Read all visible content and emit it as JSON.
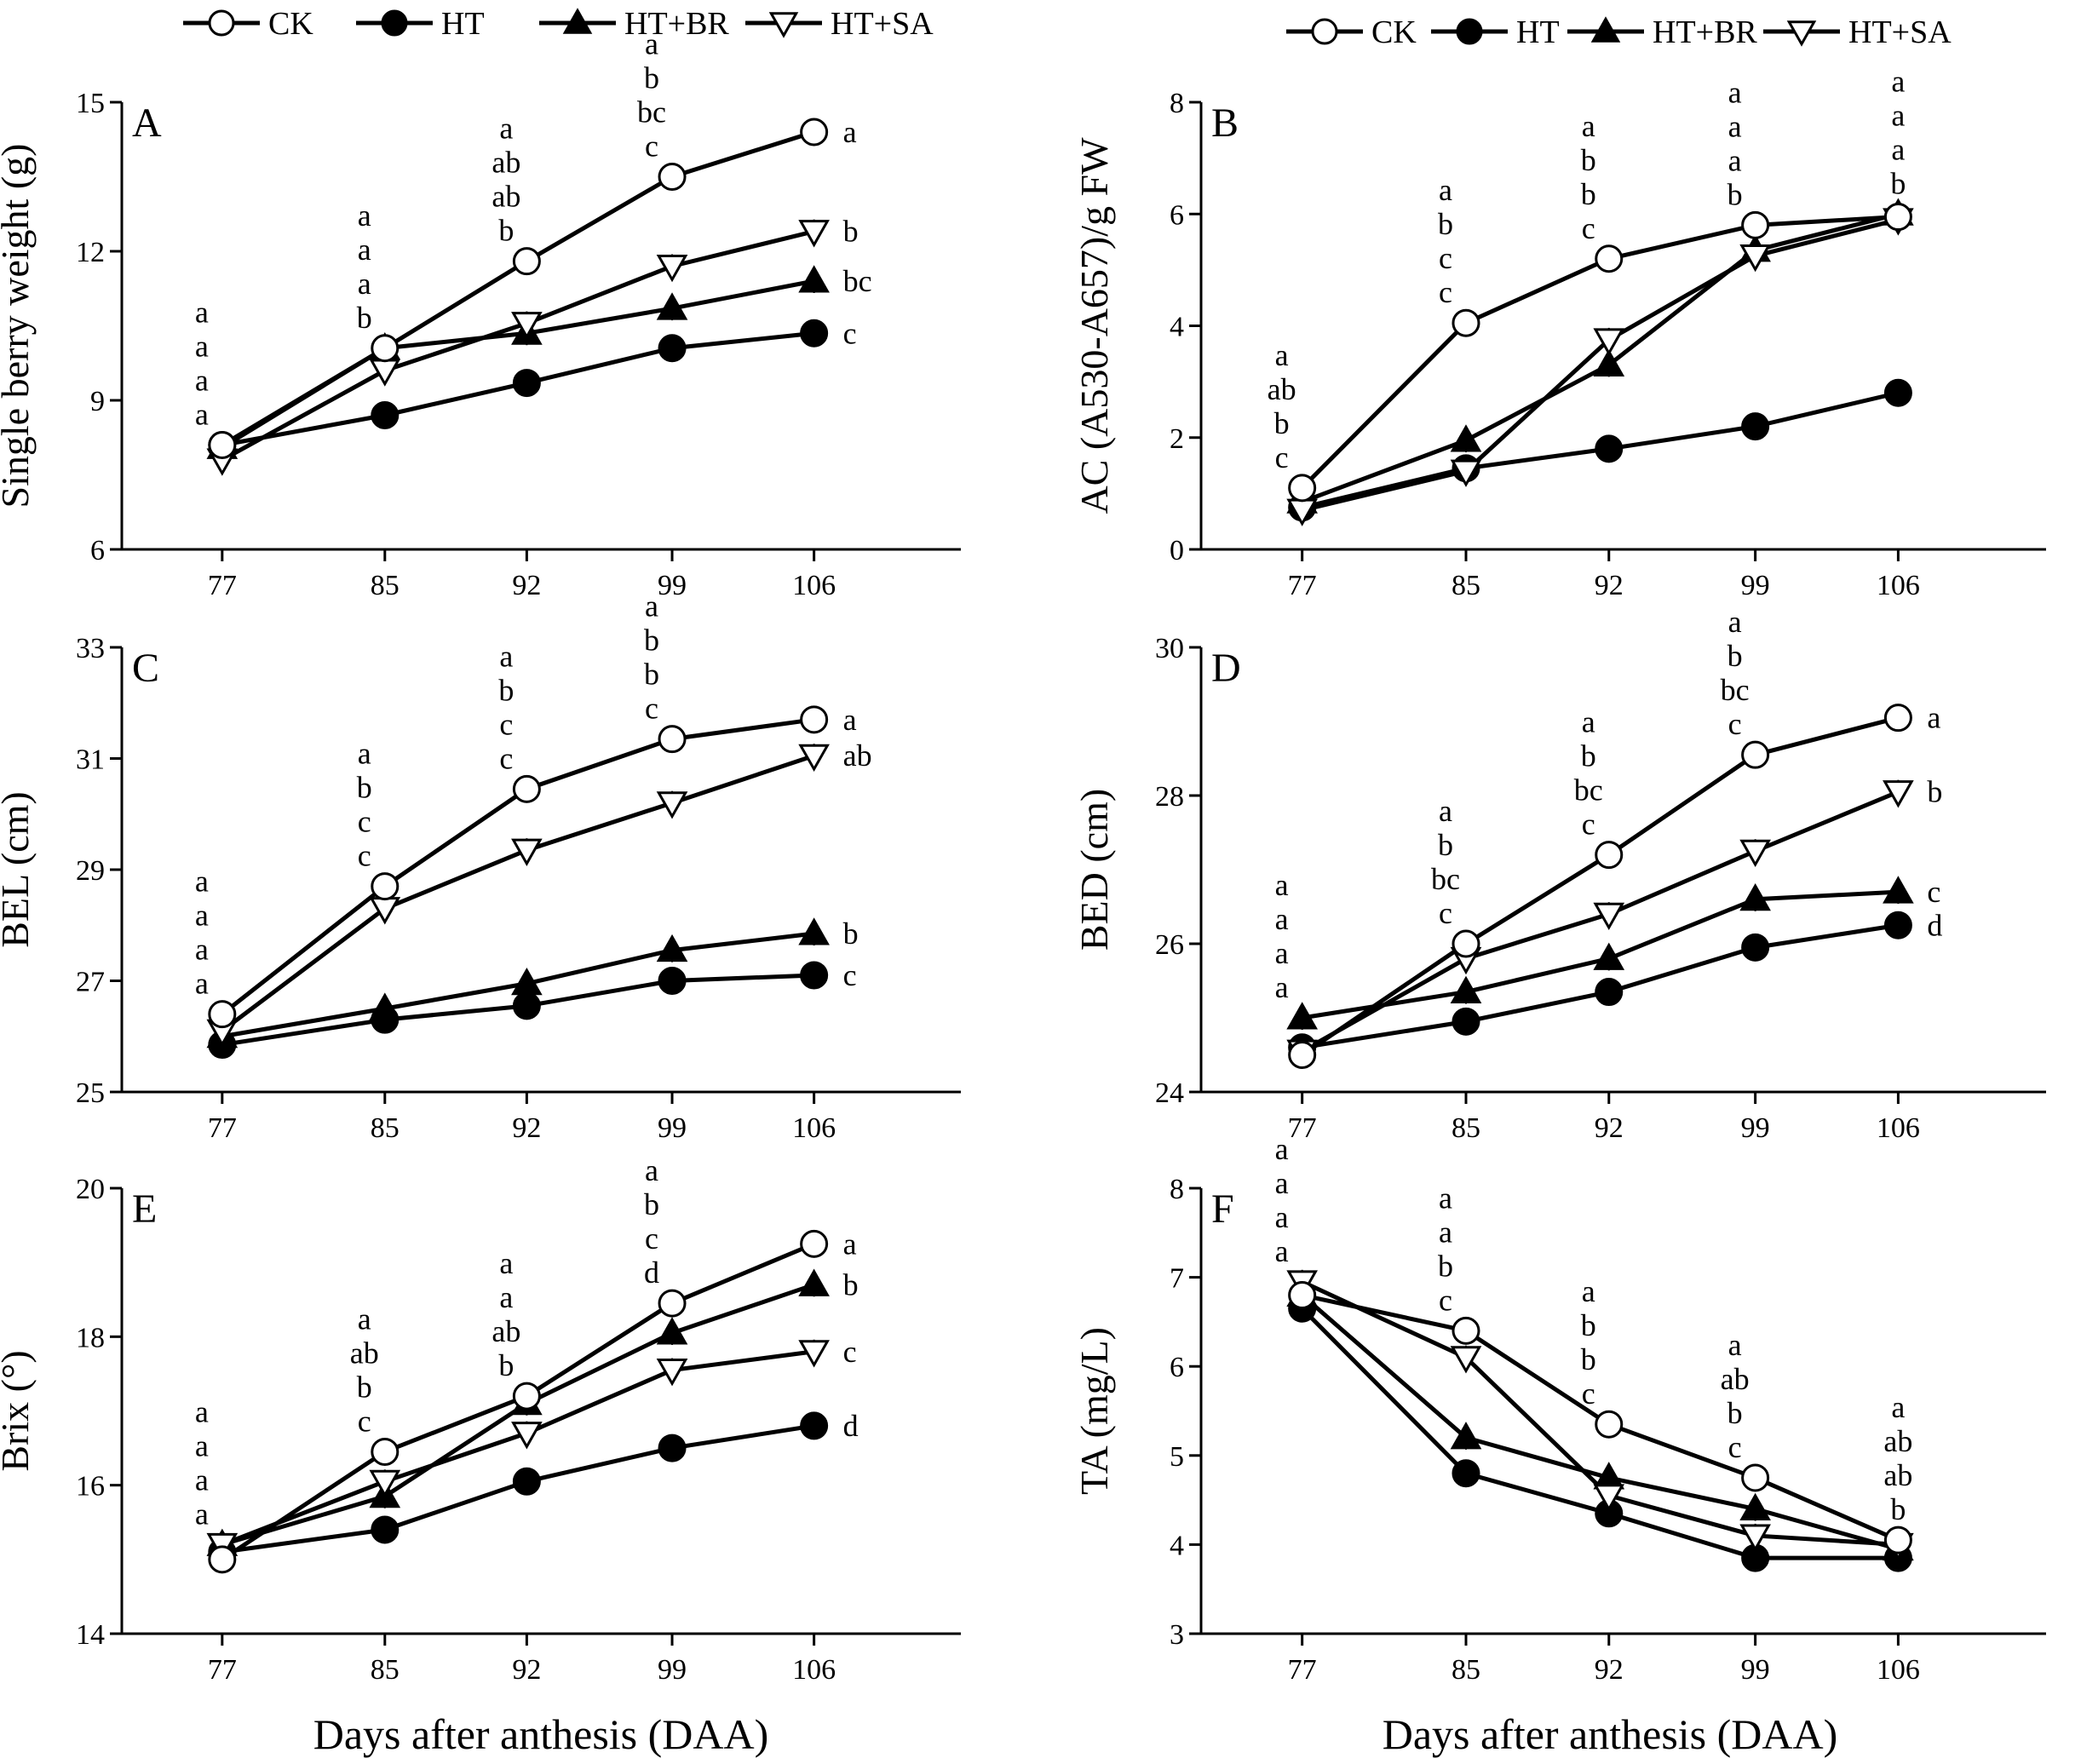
{
  "legend": [
    {
      "name": "CK",
      "marker": "open-circle-icon"
    },
    {
      "name": "HT",
      "marker": "filled-circle-icon"
    },
    {
      "name": "HT+BR",
      "marker": "filled-triangle-up-icon"
    },
    {
      "name": "HT+SA",
      "marker": "open-triangle-down-icon"
    }
  ],
  "xlabel": "Days after anthesis (DAA)",
  "chart_data": [
    {
      "panel": "A",
      "type": "line",
      "ylabel": "Single berry weight (g)",
      "categories": [
        "77",
        "85",
        "92",
        "99",
        "106"
      ],
      "ylim": [
        6,
        15
      ],
      "yticks": [
        6,
        9,
        12,
        15
      ],
      "series": [
        {
          "name": "CK",
          "values": [
            8.1,
            10.05,
            11.8,
            13.5,
            14.4
          ]
        },
        {
          "name": "HT",
          "values": [
            8.1,
            8.7,
            9.35,
            10.05,
            10.35
          ]
        },
        {
          "name": "HT+BR",
          "values": [
            8.05,
            10.05,
            10.35,
            10.85,
            11.4
          ]
        },
        {
          "name": "HT+SA",
          "values": [
            7.8,
            9.6,
            10.55,
            11.7,
            12.4
          ]
        }
      ],
      "letters": [
        [
          "a",
          "a",
          "a",
          "a"
        ],
        [
          "a",
          "a",
          "a",
          "b"
        ],
        [
          "a",
          "ab",
          "ab",
          "b"
        ],
        [
          "a",
          "b",
          "bc",
          "c"
        ],
        []
      ],
      "end_letters": [
        "a",
        "b",
        "bc",
        "c"
      ]
    },
    {
      "panel": "B",
      "type": "line",
      "ylabel": "AC (A530-A657)/g FW",
      "categories": [
        "77",
        "85",
        "92",
        "99",
        "106"
      ],
      "ylim": [
        0,
        8
      ],
      "yticks": [
        0,
        2,
        4,
        6,
        8
      ],
      "series": [
        {
          "name": "CK",
          "values": [
            1.1,
            4.05,
            5.2,
            5.8,
            5.95
          ]
        },
        {
          "name": "HT",
          "values": [
            0.75,
            1.45,
            1.8,
            2.2,
            2.8
          ]
        },
        {
          "name": "HT+BR",
          "values": [
            0.85,
            1.95,
            3.3,
            5.35,
            6.0
          ]
        },
        {
          "name": "HT+SA",
          "values": [
            0.7,
            1.4,
            3.75,
            5.25,
            5.9
          ]
        }
      ],
      "letters": [
        [
          "a",
          "ab",
          "b",
          "c"
        ],
        [
          "a",
          "b",
          "c",
          "c"
        ],
        [
          "a",
          "b",
          "b",
          "c"
        ],
        [
          "a",
          "a",
          "a",
          "b"
        ],
        [
          "a",
          "a",
          "a",
          "b"
        ]
      ],
      "end_letters": []
    },
    {
      "panel": "C",
      "type": "line",
      "ylabel": "BEL (cm)",
      "categories": [
        "77",
        "85",
        "92",
        "99",
        "106"
      ],
      "ylim": [
        25,
        33
      ],
      "yticks": [
        25,
        27,
        29,
        31,
        33
      ],
      "series": [
        {
          "name": "CK",
          "values": [
            26.4,
            28.7,
            30.45,
            31.35,
            31.7
          ]
        },
        {
          "name": "HT",
          "values": [
            25.85,
            26.3,
            26.55,
            27.0,
            27.1
          ]
        },
        {
          "name": "HT+BR",
          "values": [
            26.0,
            26.5,
            26.95,
            27.55,
            27.85
          ]
        },
        {
          "name": "HT+SA",
          "values": [
            26.1,
            28.3,
            29.35,
            30.2,
            31.05
          ]
        }
      ],
      "letters": [
        [
          "a",
          "a",
          "a",
          "a"
        ],
        [
          "a",
          "b",
          "c",
          "c"
        ],
        [
          "a",
          "b",
          "c",
          "c"
        ],
        [
          "a",
          "b",
          "b",
          "c"
        ],
        []
      ],
      "end_letters": [
        "a",
        "ab",
        "b",
        "c"
      ]
    },
    {
      "panel": "D",
      "type": "line",
      "ylabel": "BED (cm)",
      "categories": [
        "77",
        "85",
        "92",
        "99",
        "106"
      ],
      "ylim": [
        24,
        30
      ],
      "yticks": [
        24,
        26,
        28,
        30
      ],
      "series": [
        {
          "name": "CK",
          "values": [
            24.5,
            26.0,
            27.2,
            28.55,
            29.05
          ]
        },
        {
          "name": "HT",
          "values": [
            24.6,
            24.95,
            25.35,
            25.95,
            26.25
          ]
        },
        {
          "name": "HT+BR",
          "values": [
            25.0,
            25.35,
            25.8,
            26.6,
            26.7
          ]
        },
        {
          "name": "HT+SA",
          "values": [
            24.55,
            25.8,
            26.4,
            27.25,
            28.05
          ]
        }
      ],
      "letters": [
        [
          "a",
          "a",
          "a",
          "a"
        ],
        [
          "a",
          "b",
          "bc",
          "c"
        ],
        [
          "a",
          "b",
          "bc",
          "c"
        ],
        [
          "a",
          "b",
          "bc",
          "c"
        ],
        []
      ],
      "end_letters": [
        "a",
        "b",
        "c",
        "d"
      ]
    },
    {
      "panel": "E",
      "type": "line",
      "ylabel": "Brix (°)",
      "categories": [
        "77",
        "85",
        "92",
        "99",
        "106"
      ],
      "ylim": [
        14,
        20
      ],
      "yticks": [
        14,
        16,
        18,
        20
      ],
      "series": [
        {
          "name": "CK",
          "values": [
            15.0,
            16.45,
            17.2,
            18.45,
            19.25
          ]
        },
        {
          "name": "HT",
          "values": [
            15.1,
            15.4,
            16.05,
            16.5,
            16.8
          ]
        },
        {
          "name": "HT+BR",
          "values": [
            15.2,
            15.85,
            17.1,
            18.05,
            18.7
          ]
        },
        {
          "name": "HT+SA",
          "values": [
            15.2,
            16.05,
            16.7,
            17.55,
            17.8
          ]
        }
      ],
      "letters": [
        [
          "a",
          "a",
          "a",
          "a"
        ],
        [
          "a",
          "ab",
          "b",
          "c"
        ],
        [
          "a",
          "a",
          "ab",
          "b"
        ],
        [
          "a",
          "b",
          "c",
          "d"
        ],
        []
      ],
      "end_letters": [
        "a",
        "b",
        "c",
        "d"
      ]
    },
    {
      "panel": "F",
      "type": "line",
      "ylabel": "TA (mg/L)",
      "categories": [
        "77",
        "85",
        "92",
        "99",
        "106"
      ],
      "ylim": [
        3,
        8
      ],
      "yticks": [
        3,
        4,
        5,
        6,
        7,
        8
      ],
      "series": [
        {
          "name": "CK",
          "values": [
            6.8,
            6.4,
            5.35,
            4.75,
            4.05
          ]
        },
        {
          "name": "HT",
          "values": [
            6.65,
            4.8,
            4.35,
            3.85,
            3.85
          ]
        },
        {
          "name": "HT+BR",
          "values": [
            6.8,
            5.2,
            4.75,
            4.4,
            3.95
          ]
        },
        {
          "name": "HT+SA",
          "values": [
            6.95,
            6.1,
            4.55,
            4.1,
            4.0
          ]
        }
      ],
      "letters": [
        [
          "a",
          "a",
          "a",
          "a"
        ],
        [
          "a",
          "a",
          "b",
          "c"
        ],
        [
          "a",
          "b",
          "b",
          "c"
        ],
        [
          "a",
          "ab",
          "b",
          "c"
        ],
        [
          "a",
          "ab",
          "ab",
          "b"
        ]
      ],
      "end_letters": []
    }
  ]
}
